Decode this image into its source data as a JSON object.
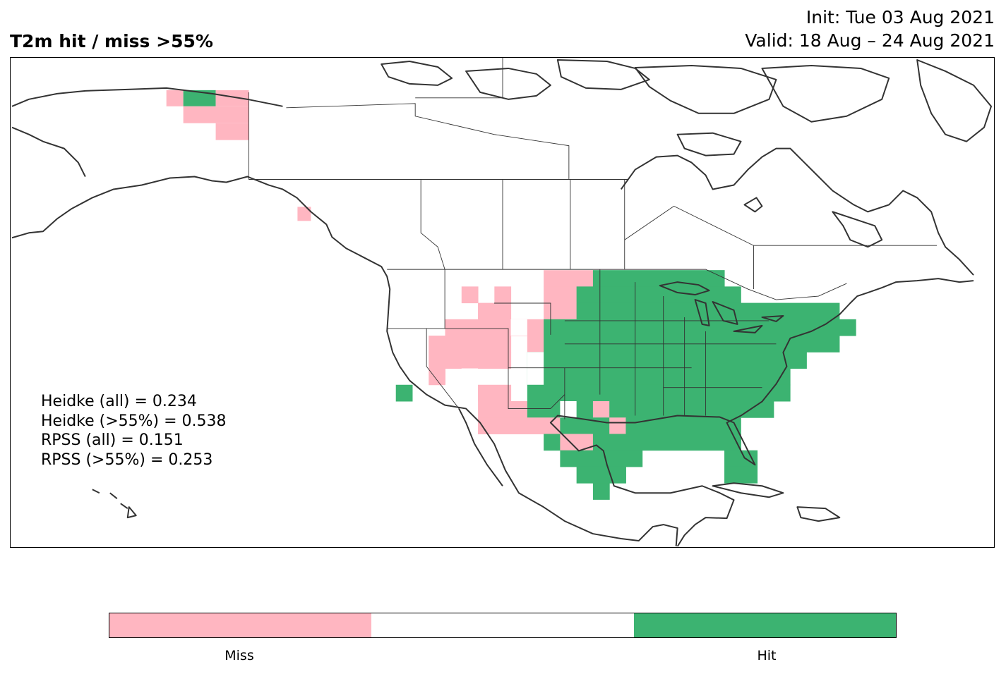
{
  "title": "T2m hit / miss  >55%",
  "init": "Init: Tue 03 Aug 2021",
  "valid": "Valid: 18 Aug – 24 Aug 2021",
  "scores": [
    "Heidke (all) = 0.234",
    "Heidke (>55%) = 0.538",
    "RPSS (all) = 0.151",
    "RPSS (>55%) = 0.253"
  ],
  "colors": {
    "miss": "#ffb6c1",
    "neutral": "#ffffff",
    "hit": "#3cb371",
    "coast": "#333333"
  },
  "legend": {
    "miss_label": "Miss",
    "hit_label": "Hit"
  }
}
